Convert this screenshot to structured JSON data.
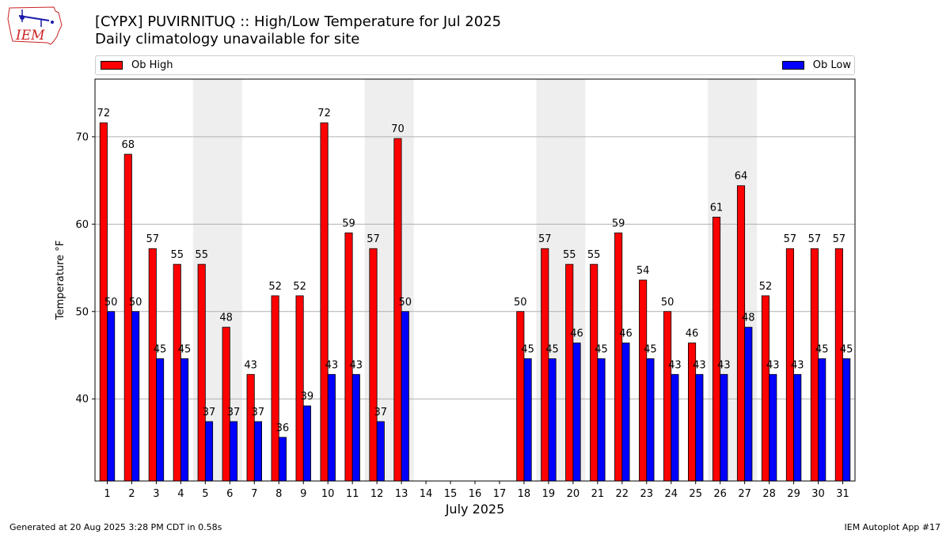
{
  "header": {
    "logo_text": "IEM",
    "title_line1": "[CYPX] PUVIRNITUQ :: High/Low Temperature for Jul 2025",
    "title_line2": "Daily climatology unavailable for site"
  },
  "legend": {
    "high_label": "Ob High",
    "low_label": "Ob Low",
    "high_color": "#ff0000",
    "low_color": "#0000ff"
  },
  "footer": {
    "generated": "Generated at 20 Aug 2025 3:28 PM CDT in 0.58s",
    "app": "IEM Autoplot App #17"
  },
  "chart_data": {
    "type": "bar",
    "title": "[CYPX] PUVIRNITUQ :: High/Low Temperature for Jul 2025",
    "subtitle": "Daily climatology unavailable for site",
    "xlabel": "July 2025",
    "ylabel": "Temperature °F",
    "ylim": [
      30.6,
      76.6
    ],
    "yticks": [
      40,
      50,
      60,
      70
    ],
    "grid": true,
    "legend_placement": "top",
    "categories": [
      "1",
      "2",
      "3",
      "4",
      "5",
      "6",
      "7",
      "8",
      "9",
      "10",
      "11",
      "12",
      "13",
      "14",
      "15",
      "16",
      "17",
      "18",
      "19",
      "20",
      "21",
      "22",
      "23",
      "24",
      "25",
      "26",
      "27",
      "28",
      "29",
      "30",
      "31"
    ],
    "weekend_shading_days": [
      5,
      6,
      12,
      13,
      19,
      20,
      26,
      27
    ],
    "series": [
      {
        "name": "Ob High",
        "color": "#ff0000",
        "values": [
          71.6,
          68.0,
          57.2,
          55.4,
          55.4,
          48.2,
          42.8,
          51.8,
          51.8,
          71.6,
          59.0,
          57.2,
          69.8,
          null,
          null,
          null,
          null,
          50.0,
          57.2,
          55.4,
          55.4,
          59.0,
          53.6,
          50.0,
          46.4,
          60.8,
          64.4,
          51.8,
          57.2,
          57.2,
          57.2
        ],
        "labels": [
          "72",
          "68",
          "57",
          "55",
          "55",
          "48",
          "43",
          "52",
          "52",
          "72",
          "59",
          "57",
          "70",
          "",
          "",
          "",
          "",
          "50",
          "57",
          "55",
          "55",
          "59",
          "54",
          "50",
          "46",
          "61",
          "64",
          "52",
          "57",
          "57",
          "57"
        ]
      },
      {
        "name": "Ob Low",
        "color": "#0000ff",
        "values": [
          50.0,
          50.0,
          44.6,
          44.6,
          37.4,
          37.4,
          37.4,
          35.6,
          39.2,
          42.8,
          42.8,
          37.4,
          50.0,
          null,
          null,
          null,
          null,
          44.6,
          44.6,
          46.4,
          44.6,
          46.4,
          44.6,
          42.8,
          42.8,
          42.8,
          48.2,
          42.8,
          42.8,
          44.6,
          44.6
        ],
        "labels": [
          "50",
          "50",
          "45",
          "45",
          "37",
          "37",
          "37",
          "36",
          "39",
          "43",
          "43",
          "37",
          "50",
          "",
          "",
          "",
          "",
          "45",
          "45",
          "46",
          "45",
          "46",
          "45",
          "43",
          "43",
          "43",
          "48",
          "43",
          "43",
          "45",
          "45"
        ]
      }
    ]
  }
}
